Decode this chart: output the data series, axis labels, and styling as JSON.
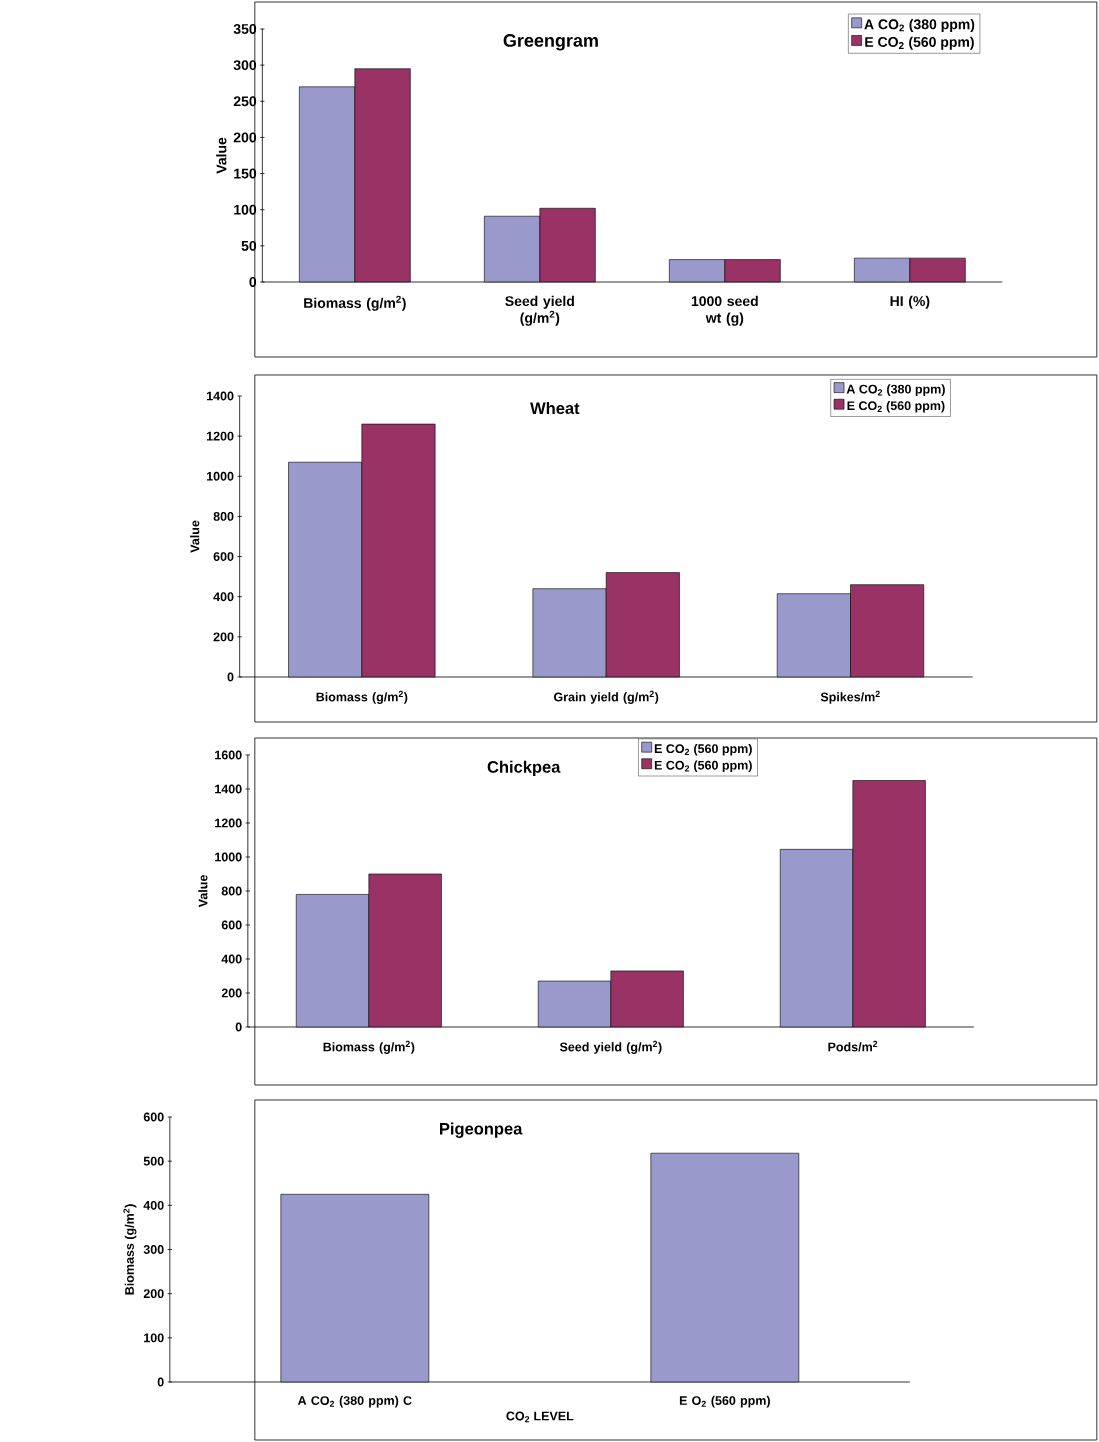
{
  "chart_data": [
    {
      "type": "bar",
      "title": "Greengram",
      "ylabel": "Value",
      "categories": [
        "Biomass (g/m$^{2}$)",
        "Seed yield (g/m$^{2}$)",
        "1000 seed wt (g)",
        "HI (%)"
      ],
      "ylim": [
        0,
        350
      ],
      "yticks": [
        0,
        50,
        100,
        150,
        200,
        250,
        300,
        350
      ],
      "legend": "top right",
      "series": [
        {
          "name": "A CO$_{2}$ (380 ppm)",
          "color": "#9999cc",
          "values": [
            270,
            91,
            31,
            33
          ]
        },
        {
          "name": "E CO$_{2}$ (560 ppm)",
          "color": "#993366",
          "values": [
            295,
            102,
            31,
            33
          ]
        }
      ]
    },
    {
      "type": "bar",
      "title": "Wheat",
      "ylabel": "Value",
      "categories": [
        "Biomass (g/m$^{2}$)",
        "Grain yield (g/m$^{2}$)",
        "Spikes/m$^{2}$"
      ],
      "ylim": [
        0,
        1400
      ],
      "yticks": [
        0,
        200,
        400,
        600,
        800,
        1000,
        1200,
        1400
      ],
      "legend": "top right",
      "series": [
        {
          "name": "A CO$_{2}$ (380 ppm)",
          "color": "#9999cc",
          "values": [
            1070,
            440,
            415
          ]
        },
        {
          "name": "E CO$_{2}$ (560 ppm)",
          "color": "#993366",
          "values": [
            1260,
            520,
            460
          ]
        }
      ]
    },
    {
      "type": "bar",
      "title": "Chickpea",
      "ylabel": "Value",
      "categories": [
        "Biomass (g/m$^{2}$)",
        "Seed yield (g/m$^{2}$)",
        "Pods/m$^{2}$"
      ],
      "ylim": [
        0,
        1600
      ],
      "yticks": [
        0,
        200,
        400,
        600,
        800,
        1000,
        1200,
        1400,
        1600
      ],
      "legend": "top",
      "series": [
        {
          "name": "E CO$_{2}$ (560 ppm)",
          "color": "#9999cc",
          "values": [
            780,
            270,
            1045
          ]
        },
        {
          "name": "E CO$_{2}$ (560 ppm)",
          "color": "#993366",
          "values": [
            900,
            330,
            1450
          ]
        }
      ]
    },
    {
      "type": "bar",
      "title": "Pigeonpea",
      "ylabel": "Biomass (g/m$^{2}$)",
      "xlabel": "CO$_{2}$ LEVEL",
      "categories": [
        "A CO$_{2}$ (380 ppm) C",
        "E   O$_{2}$ (560 ppm)"
      ],
      "ylim": [
        0,
        600
      ],
      "yticks": [
        0,
        100,
        200,
        300,
        400,
        500,
        600
      ],
      "legend": false,
      "series": [
        {
          "color": "#9999cc",
          "values": [
            425,
            518
          ]
        }
      ]
    }
  ]
}
